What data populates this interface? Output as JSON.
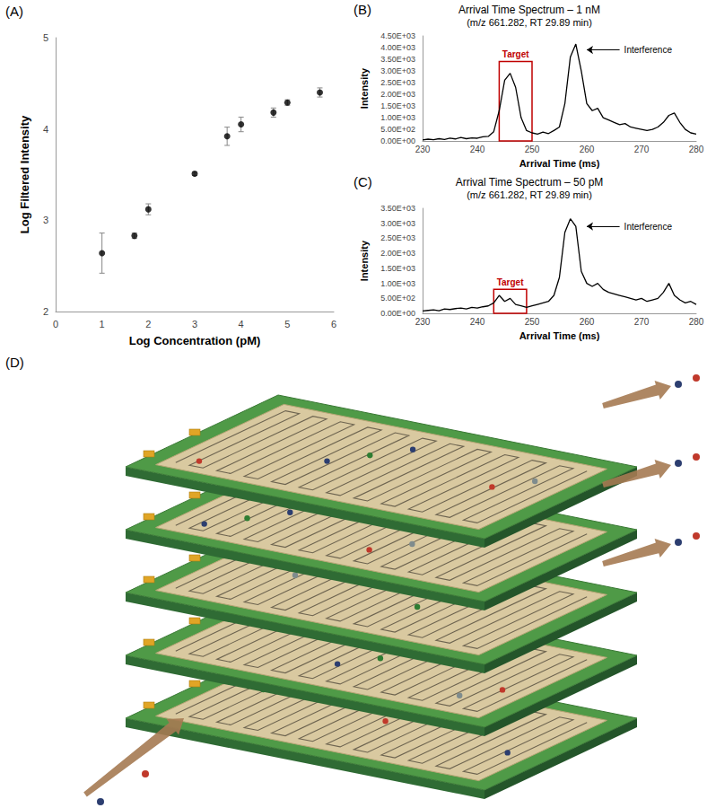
{
  "chart_data": [
    {
      "panel": "(A)",
      "type": "scatter",
      "x_label": "Log Concentration (pM)",
      "y_label": "Log Filtered Intensity",
      "x": [
        1,
        1.7,
        2,
        3,
        3.7,
        4,
        4.7,
        5,
        5.7
      ],
      "values": [
        2.64,
        2.83,
        3.12,
        3.51,
        3.92,
        4.05,
        4.18,
        4.29,
        4.4
      ],
      "errors": [
        0.22,
        0.03,
        0.06,
        0.02,
        0.1,
        0.08,
        0.05,
        0.03,
        0.05
      ],
      "color": "#000000",
      "marker": "circle",
      "xlim": [
        0,
        6
      ],
      "xticks": [
        0,
        1,
        2,
        3,
        4,
        5,
        6
      ],
      "ylim": [
        2,
        5
      ],
      "yticks": [
        2,
        3,
        4,
        5
      ],
      "grid": false
    },
    {
      "panel": "(B)",
      "type": "line",
      "title": "Arrival Time Spectrum – 1 nM",
      "subtitle": "(m/z 661.282, RT 29.89 min)",
      "x_label": "Arrival Time (ms)",
      "y_label": "Intensity",
      "x": [
        230,
        231,
        232,
        233,
        234,
        235,
        236,
        237,
        238,
        239,
        240,
        241,
        242,
        243,
        244,
        245,
        246,
        247,
        248,
        249,
        250,
        251,
        252,
        253,
        254,
        255,
        256,
        257,
        258,
        259,
        260,
        261,
        262,
        263,
        264,
        265,
        266,
        267,
        268,
        269,
        270,
        271,
        272,
        273,
        274,
        275,
        276,
        277,
        278,
        279,
        280
      ],
      "values": [
        50,
        80,
        60,
        100,
        70,
        120,
        90,
        150,
        100,
        130,
        120,
        180,
        200,
        400,
        1300,
        2600,
        2900,
        2300,
        1000,
        450,
        350,
        300,
        380,
        320,
        450,
        600,
        1600,
        3600,
        4150,
        3000,
        1600,
        1300,
        1400,
        1000,
        900,
        800,
        700,
        750,
        600,
        550,
        500,
        450,
        500,
        600,
        800,
        1100,
        1200,
        800,
        500,
        350,
        300
      ],
      "color": "#000000",
      "xlim": [
        230,
        280
      ],
      "xticks": [
        230,
        240,
        250,
        260,
        270,
        280
      ],
      "ylim": [
        0,
        4500
      ],
      "yticks": [
        {
          "value": 0,
          "label": "0.00E+00"
        },
        {
          "value": 500,
          "label": "5.00E+02"
        },
        {
          "value": 1000,
          "label": "1.00E+03"
        },
        {
          "value": 1500,
          "label": "1.50E+03"
        },
        {
          "value": 2000,
          "label": "2.00E+03"
        },
        {
          "value": 2500,
          "label": "2.50E+03"
        },
        {
          "value": 3000,
          "label": "3.00E+03"
        },
        {
          "value": 3500,
          "label": "3.50E+03"
        },
        {
          "value": 4000,
          "label": "4.00E+03"
        },
        {
          "value": 4500,
          "label": "4.50E+03"
        }
      ],
      "grid": false,
      "annotations": [
        {
          "text": "Target",
          "color": "#c00000",
          "x_range": [
            244,
            250
          ],
          "y_range": [
            0,
            3400
          ]
        },
        {
          "text": "Interference",
          "color": "#000000",
          "from": [
            266,
            3900
          ],
          "to": [
            260,
            3900
          ]
        }
      ]
    },
    {
      "panel": "(C)",
      "type": "line",
      "title": "Arrival Time Spectrum – 50 pM",
      "subtitle": "(m/z 661.282, RT 29.89 min)",
      "x_label": "Arrival Time (ms)",
      "y_label": "Intensity",
      "x": [
        230,
        231,
        232,
        233,
        234,
        235,
        236,
        237,
        238,
        239,
        240,
        241,
        242,
        243,
        244,
        245,
        246,
        247,
        248,
        249,
        250,
        251,
        252,
        253,
        254,
        255,
        256,
        257,
        258,
        259,
        260,
        261,
        262,
        263,
        264,
        265,
        266,
        267,
        268,
        269,
        270,
        271,
        272,
        273,
        274,
        275,
        276,
        277,
        278,
        279,
        280
      ],
      "values": [
        80,
        100,
        120,
        90,
        150,
        130,
        160,
        180,
        150,
        200,
        180,
        220,
        250,
        350,
        600,
        400,
        500,
        300,
        250,
        200,
        250,
        300,
        350,
        400,
        600,
        1200,
        2700,
        3150,
        2900,
        1400,
        1000,
        900,
        1000,
        800,
        700,
        650,
        600,
        550,
        500,
        450,
        500,
        400,
        450,
        500,
        700,
        1000,
        600,
        450,
        350,
        400,
        300
      ],
      "color": "#000000",
      "xlim": [
        230,
        280
      ],
      "xticks": [
        230,
        240,
        250,
        260,
        270,
        280
      ],
      "ylim": [
        0,
        3500
      ],
      "yticks": [
        {
          "value": 0,
          "label": "0.00E+00"
        },
        {
          "value": 500,
          "label": "5.00E+02"
        },
        {
          "value": 1000,
          "label": "1.00E+03"
        },
        {
          "value": 1500,
          "label": "1.50E+03"
        },
        {
          "value": 2000,
          "label": "2.00E+03"
        },
        {
          "value": 2500,
          "label": "2.50E+03"
        },
        {
          "value": 3000,
          "label": "3.00E+03"
        },
        {
          "value": 3500,
          "label": "3.50E+03"
        }
      ],
      "grid": false,
      "annotations": [
        {
          "text": "Target",
          "color": "#c00000",
          "x_range": [
            243,
            249
          ],
          "y_range": [
            0,
            800
          ]
        },
        {
          "text": "Interference",
          "color": "#000000",
          "from": [
            266,
            2900
          ],
          "to": [
            260,
            2900
          ]
        }
      ]
    }
  ],
  "diagram": {
    "panel": "(D)"
  }
}
